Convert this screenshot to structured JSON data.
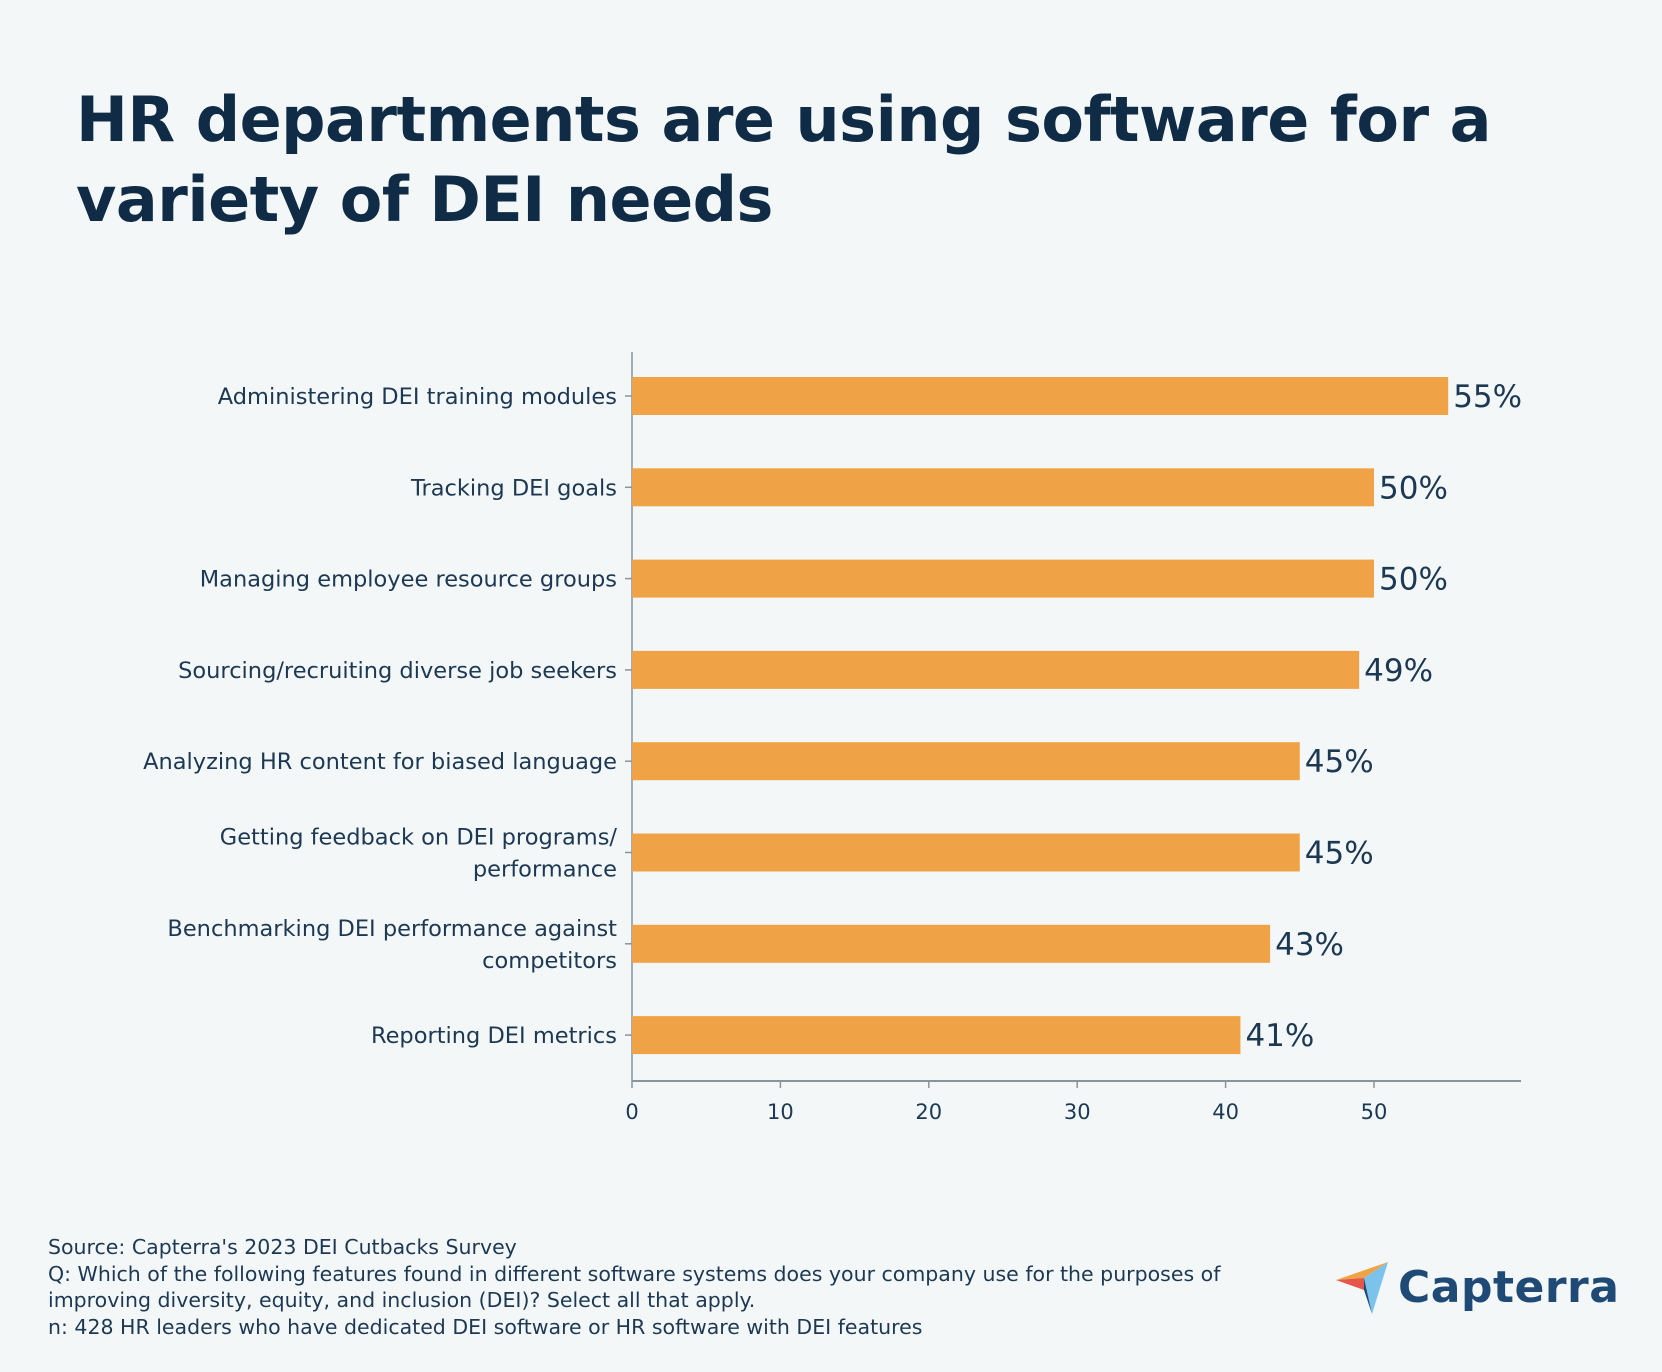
{
  "chart_data": {
    "type": "bar",
    "orientation": "horizontal",
    "title": "HR departments are using software for a variety of DEI needs",
    "categories": [
      [
        "Administering DEI training modules"
      ],
      [
        "Tracking DEI goals"
      ],
      [
        "Managing employee resource groups"
      ],
      [
        "Sourcing/recruiting diverse job seekers"
      ],
      [
        "Analyzing HR content for biased language"
      ],
      [
        "Getting feedback on DEI programs/",
        "performance"
      ],
      [
        "Benchmarking DEI performance against",
        "competitors"
      ],
      [
        "Reporting DEI metrics"
      ]
    ],
    "values": [
      55,
      50,
      50,
      49,
      45,
      45,
      43,
      41
    ],
    "data_labels": [
      "55%",
      "50%",
      "50%",
      "49%",
      "45%",
      "45%",
      "43%",
      "41%"
    ],
    "xticks": [
      0,
      10,
      20,
      30,
      40,
      50
    ],
    "xlim": [
      0,
      60
    ],
    "xlabel": "",
    "ylabel": "",
    "grid": false,
    "bar_color": "#f0a346"
  },
  "footer": {
    "source": "Source: Capterra's 2023 DEI Cutbacks Survey",
    "question_line1": "Q: Which of the following features found in different software systems does your company use for the purposes of",
    "question_line2": "improving diversity, equity, and inclusion (DEI)? Select all that apply.",
    "sample": "n: 428 HR leaders who have dedicated DEI software or HR software with DEI features"
  },
  "logo": {
    "text": "Capterra",
    "icon": "capterra-arrow-icon"
  },
  "colors": {
    "background": "#f3f7f8",
    "title": "#0f2b45",
    "text": "#1d3852",
    "bar": "#f0a346",
    "logo": "#1f4a75"
  }
}
